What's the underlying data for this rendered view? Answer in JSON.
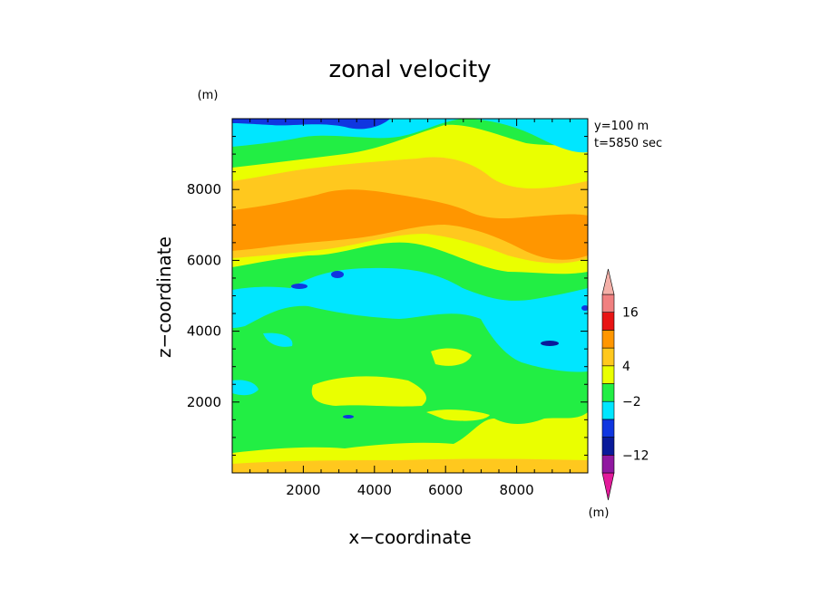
{
  "chart_data": {
    "type": "heatmap",
    "subtype": "filled-contour",
    "title": "zonal velocity",
    "xlabel": "x−coordinate",
    "ylabel": "z−coordinate",
    "x_unit": "(m)",
    "y_unit": "(m)",
    "annotations": [
      "y=100 m",
      "t=5850 sec"
    ],
    "xlim": [
      0,
      10000
    ],
    "ylim": [
      0,
      10000
    ],
    "xticks": [
      2000,
      4000,
      6000,
      8000
    ],
    "yticks": [
      2000,
      4000,
      6000,
      8000
    ],
    "xtick_labels": [
      "2000",
      "4000",
      "6000",
      "8000"
    ],
    "ytick_labels": [
      "2000",
      "4000",
      "6000",
      "8000"
    ],
    "colorbar": {
      "colors": [
        "#e21a9a",
        "#9018a0",
        "#0a1a9a",
        "#1036e0",
        "#00e6ff",
        "#22ee44",
        "#eaff00",
        "#ffc81e",
        "#ff9600",
        "#e81414",
        "#f08080",
        "#f4b0a8"
      ],
      "labels": [
        "16",
        "4",
        "−2",
        "−12"
      ],
      "unit": "(m)"
    },
    "bands_description": [
      {
        "z_range": [
          0,
          500
        ],
        "value": "yellow/orange (~4)"
      },
      {
        "z_range": [
          500,
          2500
        ],
        "value": "green (~0)"
      },
      {
        "z_range": [
          2500,
          5500
        ],
        "value": "green/cyan (~0 to -2)"
      },
      {
        "z_range": [
          5500,
          8500
        ],
        "value": "orange (~8)"
      },
      {
        "z_range": [
          8500,
          10000
        ],
        "value": "yellow/cyan, blue at top"
      }
    ]
  }
}
